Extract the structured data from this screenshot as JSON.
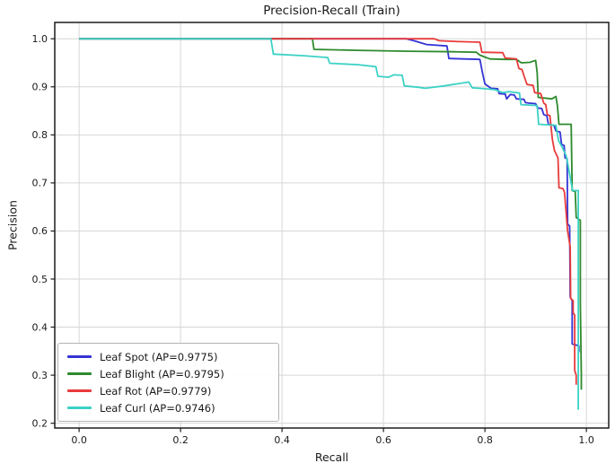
{
  "chart_data": {
    "type": "line",
    "title": "Precision-Recall (Train)",
    "xlabel": "Recall",
    "ylabel": "Precision",
    "xlim": [
      -0.048,
      1.044
    ],
    "ylim": [
      0.19,
      1.034
    ],
    "grid": true,
    "legend_position": "lower left",
    "x_ticks": [
      0.0,
      0.2,
      0.4,
      0.6,
      0.8,
      1.0
    ],
    "x_tick_labels": [
      "0.0",
      "0.2",
      "0.4",
      "0.6",
      "0.8",
      "1.0"
    ],
    "y_ticks": [
      0.2,
      0.3,
      0.4,
      0.5,
      0.6,
      0.7,
      0.8,
      0.9,
      1.0
    ],
    "y_tick_labels": [
      "0.2",
      "0.3",
      "0.4",
      "0.5",
      "0.6",
      "0.7",
      "0.8",
      "0.9",
      "1.0"
    ],
    "series": [
      {
        "name": "Leaf Spot (AP=0.9775)",
        "color": "#3434d6",
        "points": [
          [
            0.0,
            1.0
          ],
          [
            0.645,
            1.0
          ],
          [
            0.66,
            0.996
          ],
          [
            0.685,
            0.988
          ],
          [
            0.725,
            0.985
          ],
          [
            0.729,
            0.959
          ],
          [
            0.79,
            0.957
          ],
          [
            0.795,
            0.93
          ],
          [
            0.8,
            0.906
          ],
          [
            0.812,
            0.897
          ],
          [
            0.825,
            0.896
          ],
          [
            0.828,
            0.886
          ],
          [
            0.84,
            0.885
          ],
          [
            0.843,
            0.875
          ],
          [
            0.85,
            0.884
          ],
          [
            0.858,
            0.883
          ],
          [
            0.862,
            0.875
          ],
          [
            0.877,
            0.874
          ],
          [
            0.88,
            0.867
          ],
          [
            0.888,
            0.866
          ],
          [
            0.9,
            0.865
          ],
          [
            0.904,
            0.856
          ],
          [
            0.912,
            0.855
          ],
          [
            0.916,
            0.842
          ],
          [
            0.922,
            0.84
          ],
          [
            0.925,
            0.822
          ],
          [
            0.936,
            0.82
          ],
          [
            0.94,
            0.808
          ],
          [
            0.948,
            0.806
          ],
          [
            0.951,
            0.78
          ],
          [
            0.956,
            0.778
          ],
          [
            0.958,
            0.752
          ],
          [
            0.962,
            0.75
          ],
          [
            0.963,
            0.615
          ],
          [
            0.967,
            0.61
          ],
          [
            0.968,
            0.463
          ],
          [
            0.972,
            0.455
          ],
          [
            0.972,
            0.447
          ],
          [
            0.972,
            0.365
          ],
          [
            0.985,
            0.361
          ],
          [
            0.985,
            0.348
          ]
        ]
      },
      {
        "name": "Leaf Blight (AP=0.9795)",
        "color": "#2d8a2d",
        "points": [
          [
            0.0,
            1.0
          ],
          [
            0.46,
            1.0
          ],
          [
            0.463,
            0.978
          ],
          [
            0.55,
            0.976
          ],
          [
            0.65,
            0.974
          ],
          [
            0.74,
            0.973
          ],
          [
            0.783,
            0.972
          ],
          [
            0.79,
            0.966
          ],
          [
            0.8,
            0.962
          ],
          [
            0.81,
            0.958
          ],
          [
            0.84,
            0.957
          ],
          [
            0.862,
            0.957
          ],
          [
            0.872,
            0.95
          ],
          [
            0.888,
            0.951
          ],
          [
            0.9,
            0.955
          ],
          [
            0.903,
            0.93
          ],
          [
            0.905,
            0.878
          ],
          [
            0.932,
            0.875
          ],
          [
            0.94,
            0.88
          ],
          [
            0.943,
            0.86
          ],
          [
            0.946,
            0.822
          ],
          [
            0.97,
            0.822
          ],
          [
            0.972,
            0.684
          ],
          [
            0.978,
            0.682
          ],
          [
            0.98,
            0.628
          ],
          [
            0.988,
            0.622
          ],
          [
            0.988,
            0.45
          ],
          [
            0.99,
            0.3
          ],
          [
            0.99,
            0.27
          ]
        ]
      },
      {
        "name": "Leaf Rot (AP=0.9779)",
        "color": "#e83b3b",
        "points": [
          [
            0.0,
            1.0
          ],
          [
            0.7,
            1.0
          ],
          [
            0.71,
            0.996
          ],
          [
            0.75,
            0.994
          ],
          [
            0.79,
            0.993
          ],
          [
            0.794,
            0.972
          ],
          [
            0.835,
            0.971
          ],
          [
            0.84,
            0.96
          ],
          [
            0.862,
            0.958
          ],
          [
            0.867,
            0.938
          ],
          [
            0.873,
            0.936
          ],
          [
            0.878,
            0.92
          ],
          [
            0.883,
            0.905
          ],
          [
            0.895,
            0.903
          ],
          [
            0.898,
            0.888
          ],
          [
            0.91,
            0.886
          ],
          [
            0.916,
            0.866
          ],
          [
            0.92,
            0.863
          ],
          [
            0.923,
            0.842
          ],
          [
            0.928,
            0.84
          ],
          [
            0.93,
            0.82
          ],
          [
            0.933,
            0.79
          ],
          [
            0.937,
            0.768
          ],
          [
            0.944,
            0.752
          ],
          [
            0.946,
            0.69
          ],
          [
            0.954,
            0.688
          ],
          [
            0.957,
            0.68
          ],
          [
            0.963,
            0.6
          ],
          [
            0.968,
            0.567
          ],
          [
            0.969,
            0.46
          ],
          [
            0.974,
            0.455
          ],
          [
            0.974,
            0.43
          ],
          [
            0.977,
            0.425
          ],
          [
            0.977,
            0.31
          ],
          [
            0.98,
            0.3
          ],
          [
            0.98,
            0.28
          ]
        ]
      },
      {
        "name": "Leaf Curl (AP=0.9746)",
        "color": "#3bd2c5",
        "points": [
          [
            0.0,
            1.0
          ],
          [
            0.378,
            1.0
          ],
          [
            0.383,
            0.968
          ],
          [
            0.44,
            0.965
          ],
          [
            0.49,
            0.961
          ],
          [
            0.494,
            0.949
          ],
          [
            0.55,
            0.946
          ],
          [
            0.585,
            0.942
          ],
          [
            0.589,
            0.922
          ],
          [
            0.61,
            0.92
          ],
          [
            0.62,
            0.925
          ],
          [
            0.637,
            0.924
          ],
          [
            0.641,
            0.902
          ],
          [
            0.67,
            0.899
          ],
          [
            0.682,
            0.897
          ],
          [
            0.72,
            0.902
          ],
          [
            0.768,
            0.91
          ],
          [
            0.775,
            0.898
          ],
          [
            0.8,
            0.896
          ],
          [
            0.82,
            0.894
          ],
          [
            0.835,
            0.888
          ],
          [
            0.848,
            0.89
          ],
          [
            0.862,
            0.888
          ],
          [
            0.868,
            0.887
          ],
          [
            0.871,
            0.863
          ],
          [
            0.903,
            0.861
          ],
          [
            0.906,
            0.822
          ],
          [
            0.94,
            0.82
          ],
          [
            0.945,
            0.788
          ],
          [
            0.952,
            0.775
          ],
          [
            0.96,
            0.757
          ],
          [
            0.963,
            0.742
          ],
          [
            0.97,
            0.7
          ],
          [
            0.973,
            0.684
          ],
          [
            0.984,
            0.684
          ],
          [
            0.984,
            0.228
          ]
        ]
      }
    ],
    "style": {
      "grid_color": "#d6d6d6",
      "spine_color": "#1c1c1c",
      "tick_text_color": "#1a1a1a",
      "line_width": 1.8
    }
  }
}
